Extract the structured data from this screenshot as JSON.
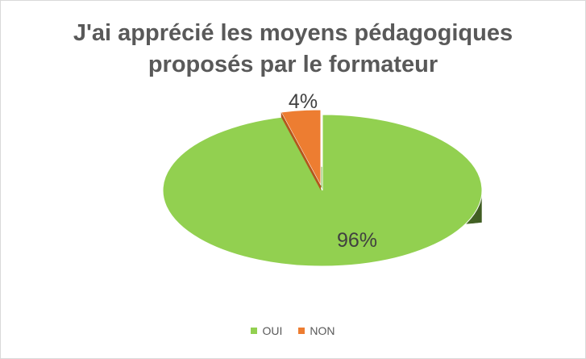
{
  "chart_data": {
    "type": "pie",
    "title_line1": "J'ai apprécié les moyens pédagogiques",
    "title_line2": "proposés par le formateur",
    "categories": [
      "OUI",
      "NON"
    ],
    "values": [
      96,
      4
    ],
    "labels": [
      "96%",
      "4%"
    ],
    "colors": [
      "#92d050",
      "#ed7d31"
    ],
    "side_colors": [
      "#5f8a2f",
      "#b3561d"
    ],
    "legend_position": "bottom",
    "style": "3d"
  }
}
